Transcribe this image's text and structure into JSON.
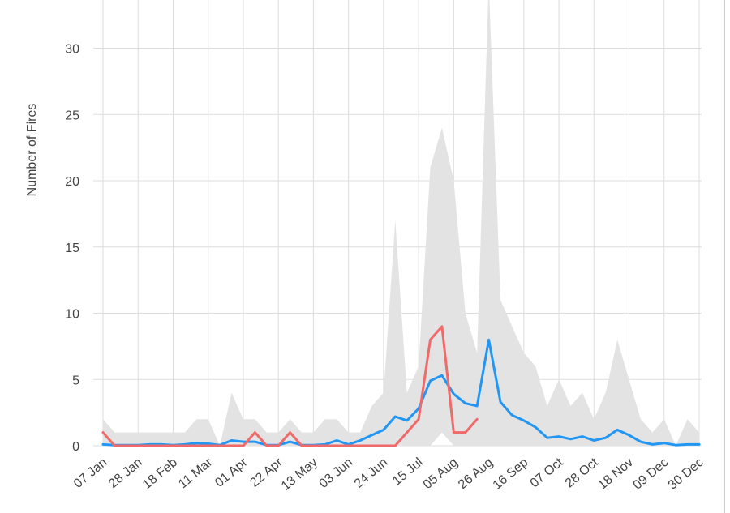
{
  "chart_data": {
    "type": "line",
    "ylabel": "Number of Fires",
    "xlabel": "",
    "ylim": [
      0,
      33
    ],
    "y_ticks": [
      0,
      5,
      10,
      15,
      20,
      25,
      30
    ],
    "grid": true,
    "x": [
      "07 Jan",
      "14 Jan",
      "21 Jan",
      "28 Jan",
      "04 Feb",
      "11 Feb",
      "18 Feb",
      "25 Feb",
      "04 Mar",
      "11 Mar",
      "18 Mar",
      "25 Mar",
      "01 Apr",
      "08 Apr",
      "15 Apr",
      "22 Apr",
      "29 Apr",
      "06 May",
      "13 May",
      "20 May",
      "27 May",
      "03 Jun",
      "10 Jun",
      "17 Jun",
      "24 Jun",
      "01 Jul",
      "08 Jul",
      "15 Jul",
      "22 Jul",
      "29 Jul",
      "05 Aug",
      "12 Aug",
      "19 Aug",
      "26 Aug",
      "02 Sep",
      "09 Sep",
      "16 Sep",
      "23 Sep",
      "30 Sep",
      "07 Oct",
      "14 Oct",
      "21 Oct",
      "28 Oct",
      "04 Nov",
      "11 Nov",
      "18 Nov",
      "25 Nov",
      "02 Dec",
      "09 Dec",
      "16 Dec",
      "23 Dec",
      "30 Dec"
    ],
    "x_tick_labels": [
      "07 Jan",
      "28 Jan",
      "18 Feb",
      "11 Mar",
      "01 Apr",
      "22 Apr",
      "13 May",
      "03 Jun",
      "24 Jun",
      "15 Jul",
      "05 Aug",
      "26 Aug",
      "16 Sep",
      "07 Oct",
      "28 Oct",
      "18 Nov",
      "09 Dec",
      "30 Dec"
    ],
    "band": {
      "color": "#e3e3e3",
      "upper": [
        2,
        1,
        1,
        1,
        1,
        1,
        1,
        1,
        2,
        2,
        0,
        4,
        2,
        2,
        1,
        1,
        2,
        1,
        1,
        2,
        2,
        1,
        1,
        3,
        4,
        17,
        4,
        6,
        21,
        24,
        20,
        10,
        7,
        35,
        11,
        9,
        7,
        6,
        3,
        5,
        3,
        4,
        2,
        4,
        8,
        5,
        2,
        1,
        2,
        0,
        2,
        1
      ],
      "lower": [
        0,
        0,
        0,
        0,
        0,
        0,
        0,
        0,
        0,
        0,
        0,
        0,
        0,
        0,
        0,
        0,
        0,
        0,
        0,
        0,
        0,
        0,
        0,
        0,
        0,
        0,
        0,
        0,
        0,
        1,
        0,
        0,
        0,
        0,
        0,
        0,
        0,
        0,
        0,
        0,
        0,
        0,
        0,
        0,
        0,
        0,
        0,
        0,
        0,
        0,
        0,
        0
      ]
    },
    "series": [
      {
        "color": "#2196f3",
        "values": [
          0.1,
          0.05,
          0.05,
          0.05,
          0.1,
          0.1,
          0.05,
          0.1,
          0.2,
          0.15,
          0.05,
          0.4,
          0.3,
          0.3,
          0.05,
          0.05,
          0.3,
          0.05,
          0.05,
          0.1,
          0.4,
          0.1,
          0.4,
          0.8,
          1.2,
          2.2,
          1.9,
          2.8,
          4.9,
          5.3,
          3.9,
          3.2,
          3.0,
          8.0,
          3.3,
          2.3,
          1.9,
          1.4,
          0.6,
          0.7,
          0.5,
          0.7,
          0.4,
          0.6,
          1.2,
          0.8,
          0.3,
          0.1,
          0.2,
          0.05,
          0.1,
          0.1
        ]
      },
      {
        "color": "#f06a6a",
        "values": [
          1,
          0,
          0,
          0,
          0,
          0,
          0,
          0,
          0,
          0,
          0,
          0,
          0,
          1,
          0,
          0,
          1,
          0,
          0,
          0,
          0,
          0,
          0,
          0,
          0,
          0,
          1,
          2,
          8,
          9,
          1,
          1,
          2,
          null,
          null,
          null,
          null,
          null,
          null,
          null,
          null,
          null,
          null,
          null,
          null,
          null,
          null,
          null,
          null,
          null,
          null,
          null
        ]
      }
    ]
  }
}
